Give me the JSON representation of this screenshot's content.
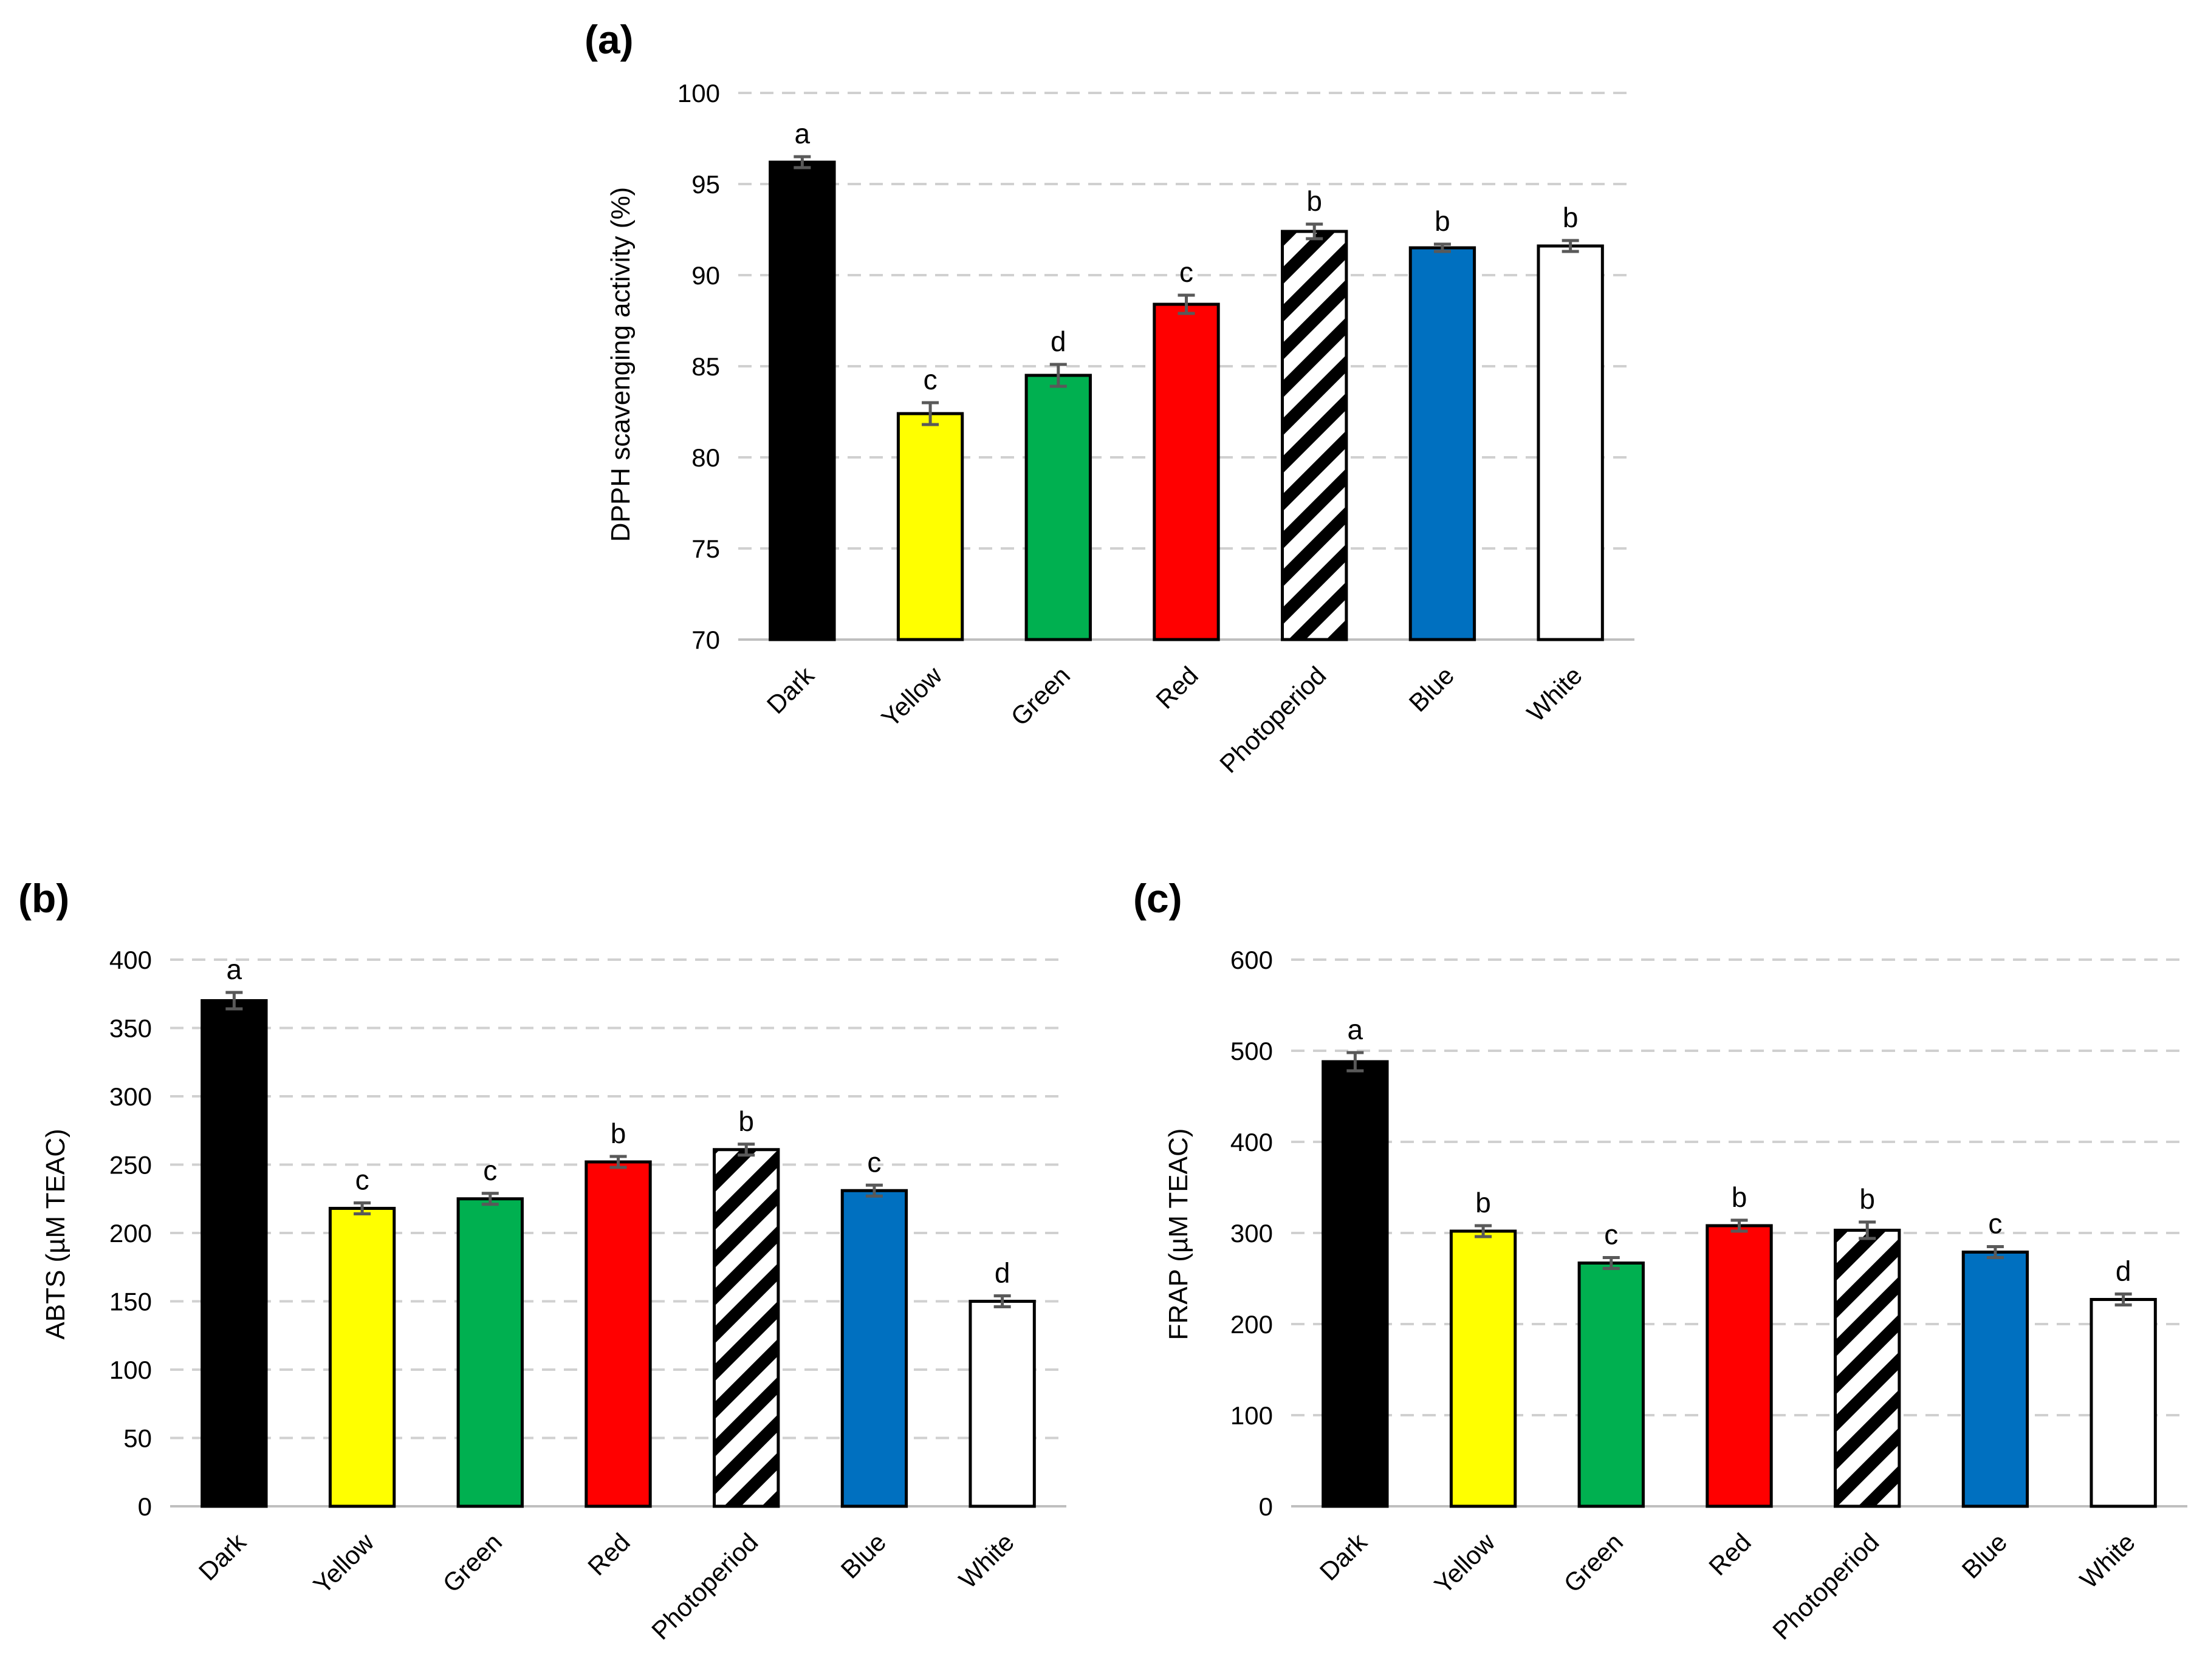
{
  "figure": {
    "colors": {
      "Dark": "#000000",
      "Yellow": "#ffff00",
      "Green": "#00b050",
      "Red": "#ff0000",
      "Photoperiod": "hatch",
      "Blue": "#0070c0",
      "White": "#ffffff"
    }
  },
  "chart_data": [
    {
      "panel": "(a)",
      "type": "bar",
      "ylabel": "DPPH scavenging activity (%)",
      "xlabel": "",
      "categories": [
        "Dark",
        "Yellow",
        "Green",
        "Red",
        "Photoperiod",
        "Blue",
        "White"
      ],
      "values": [
        96.2,
        82.4,
        84.5,
        88.4,
        92.4,
        91.5,
        91.6
      ],
      "errors": [
        0.3,
        0.6,
        0.6,
        0.5,
        0.4,
        0.2,
        0.3
      ],
      "letters": [
        "a",
        "c",
        "d",
        "c",
        "b",
        "b",
        "b"
      ],
      "ylim": [
        70,
        100
      ],
      "yticks": [
        70,
        75,
        80,
        85,
        90,
        95,
        100
      ],
      "grid": true
    },
    {
      "panel": "(b)",
      "type": "bar",
      "ylabel": "ABTS (µM TEAC)",
      "xlabel": "",
      "categories": [
        "Dark",
        "Yellow",
        "Green",
        "Red",
        "Photoperiod",
        "Blue",
        "White"
      ],
      "values": [
        370,
        218,
        225,
        252,
        261,
        231,
        150
      ],
      "errors": [
        6,
        4,
        4,
        4,
        4,
        4,
        4
      ],
      "letters": [
        "a",
        "c",
        "c",
        "b",
        "b",
        "c",
        "d"
      ],
      "ylim": [
        0,
        400
      ],
      "yticks": [
        0,
        50,
        100,
        150,
        200,
        250,
        300,
        350,
        400
      ],
      "grid": true
    },
    {
      "panel": "(c)",
      "type": "bar",
      "ylabel": "FRAP (µM TEAC)",
      "xlabel": "",
      "categories": [
        "Dark",
        "Yellow",
        "Green",
        "Red",
        "Photoperiod",
        "Blue",
        "White"
      ],
      "values": [
        488,
        302,
        267,
        308,
        303,
        279,
        227
      ],
      "errors": [
        10,
        6,
        6,
        6,
        9,
        6,
        6
      ],
      "letters": [
        "a",
        "b",
        "c",
        "b",
        "b",
        "c",
        "d"
      ],
      "ylim": [
        0,
        600
      ],
      "yticks": [
        0,
        100,
        200,
        300,
        400,
        500,
        600
      ],
      "grid": true
    }
  ]
}
